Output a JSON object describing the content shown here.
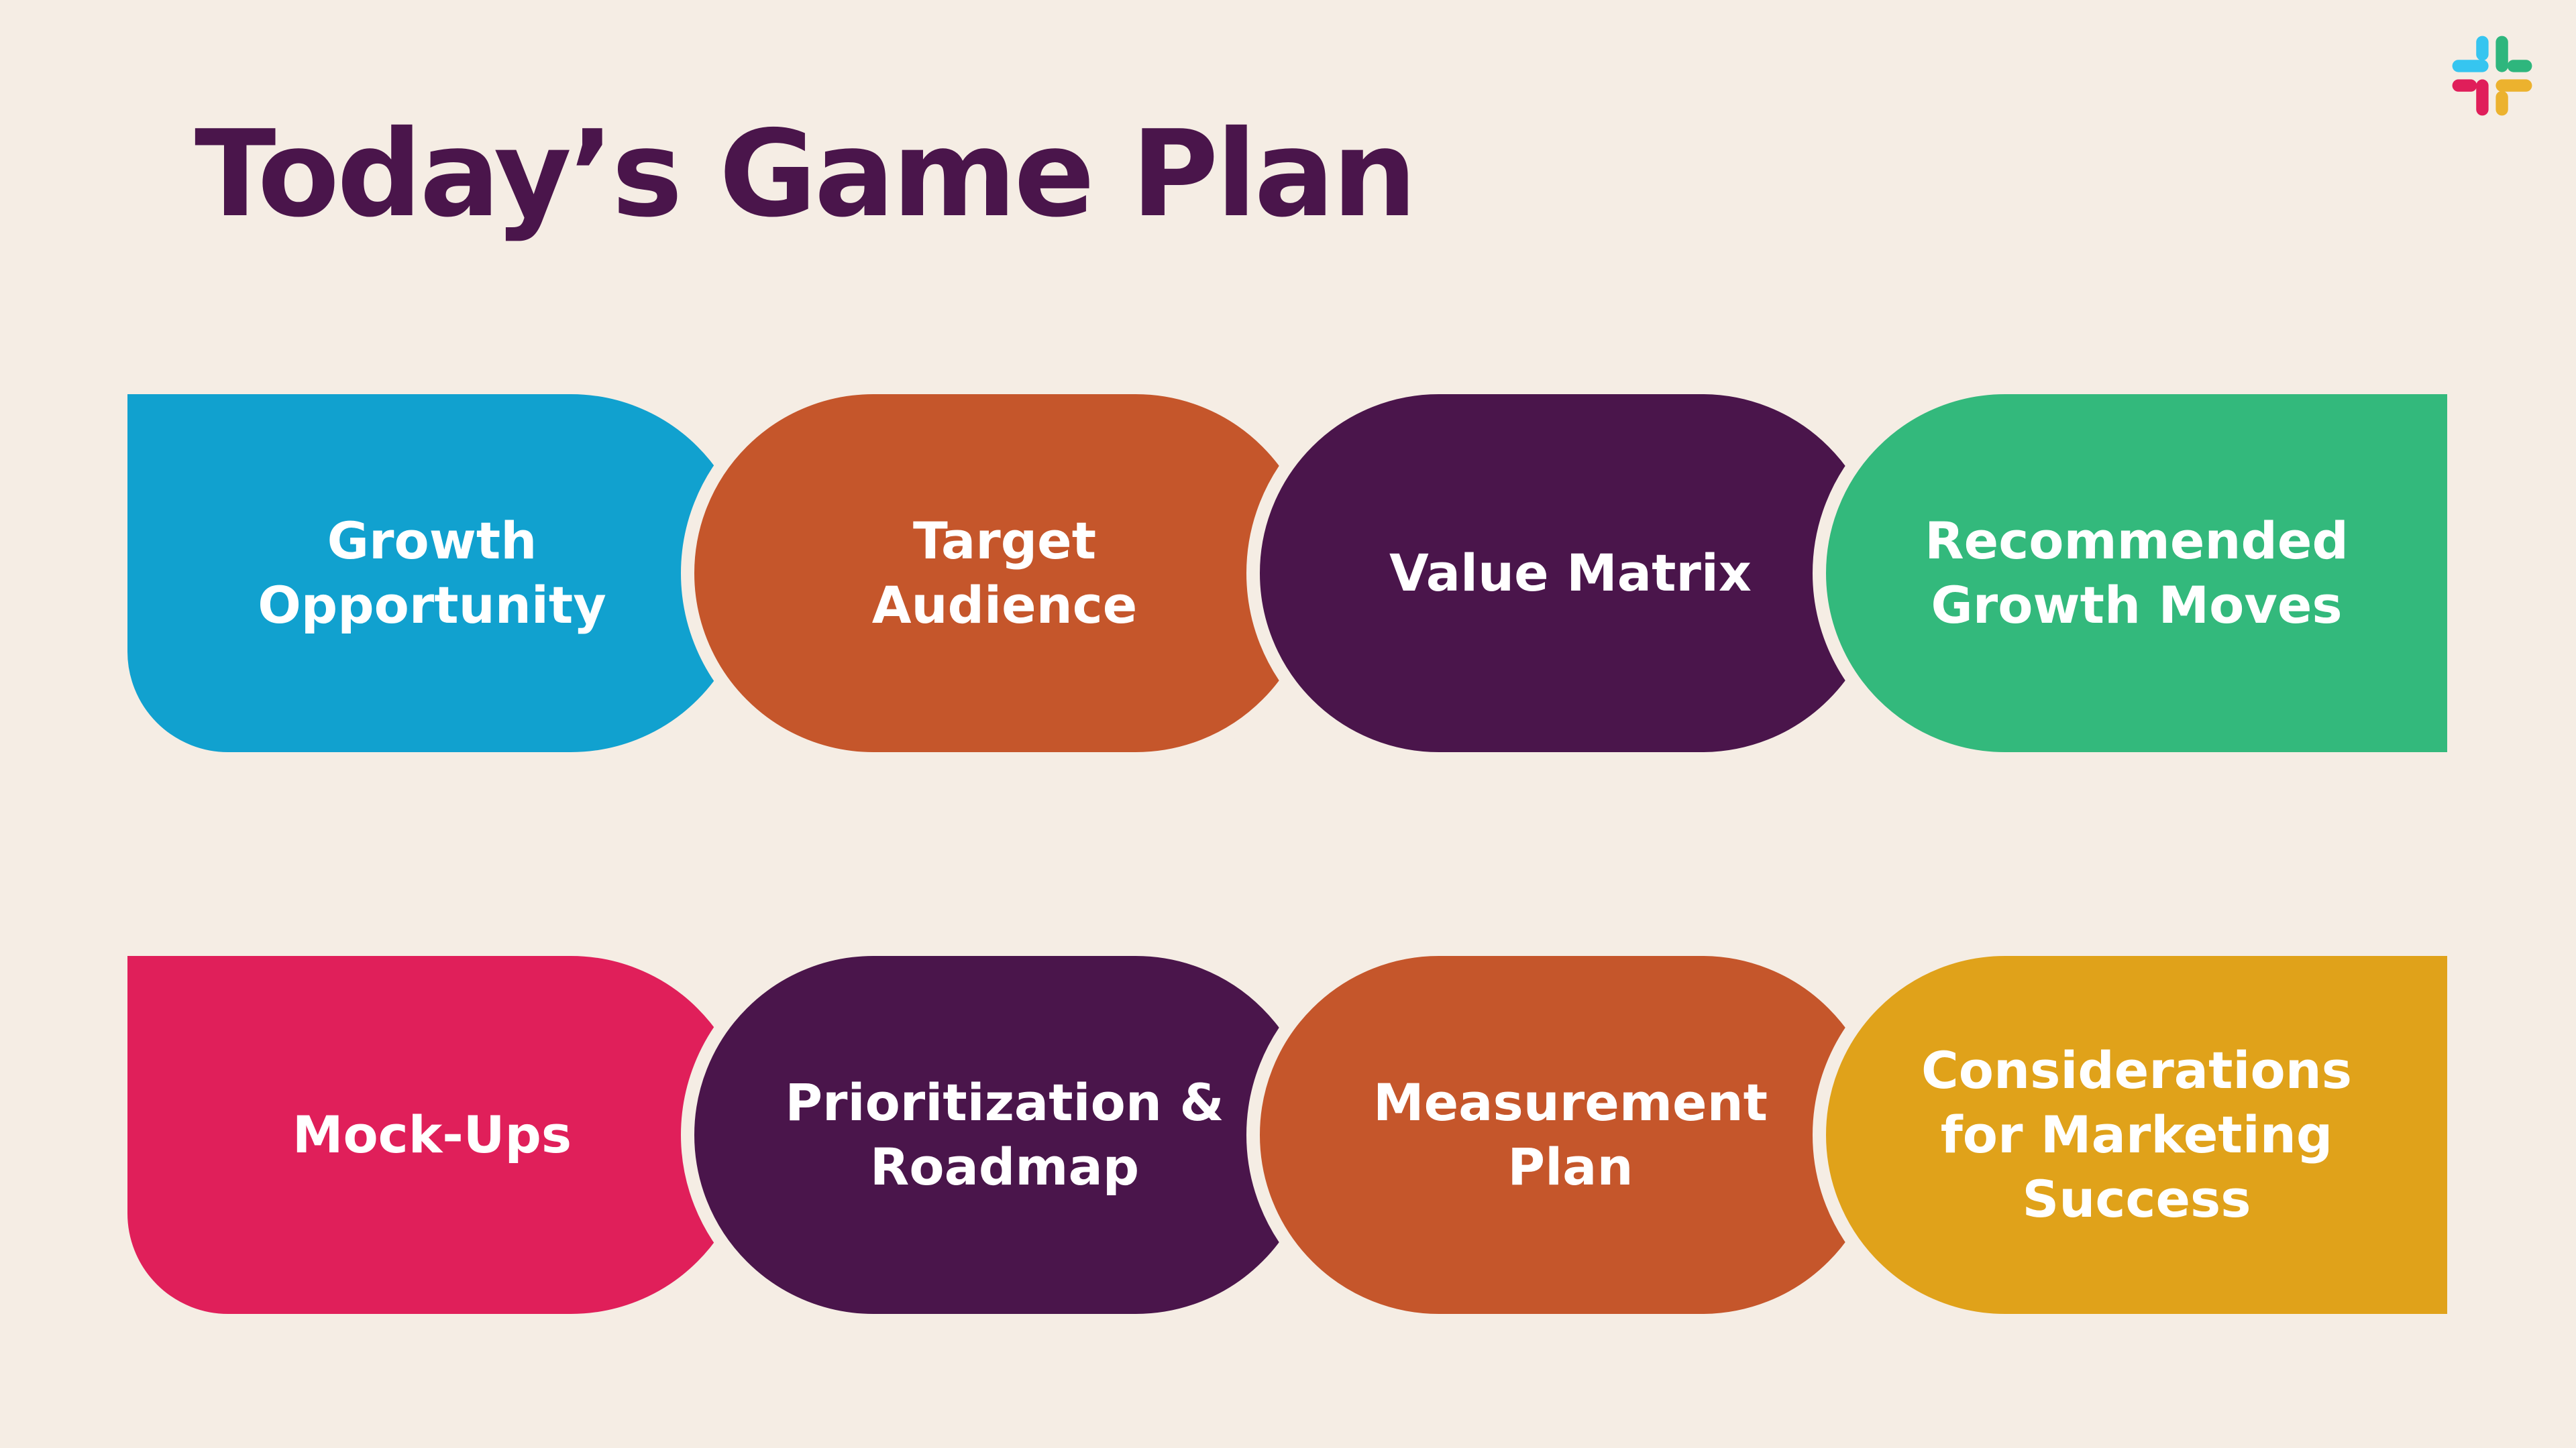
{
  "title": "Today’s Game Plan",
  "logo": {
    "name": "slack-logo-icon",
    "colors": [
      "#36c5f0",
      "#2eb67d",
      "#ecb22e",
      "#e01e5a"
    ]
  },
  "colors": {
    "background": "#f5ede4",
    "title": "#4a154b"
  },
  "agenda": [
    {
      "label": "Growth\nOpportunity",
      "color": "#11a1cf"
    },
    {
      "label": "Target\nAudience",
      "color": "#c5562b"
    },
    {
      "label": "Value Matrix",
      "color": "#4a154b"
    },
    {
      "label": "Recommended\nGrowth Moves",
      "color": "#33b97c"
    },
    {
      "label": "Mock-Ups",
      "color": "#e01f5a"
    },
    {
      "label": "Prioritization &\nRoadmap",
      "color": "#4a154b"
    },
    {
      "label": "Measurement\nPlan",
      "color": "#c5562b"
    },
    {
      "label": "Considerations\nfor Marketing\nSuccess",
      "color": "#e0a21a"
    }
  ]
}
